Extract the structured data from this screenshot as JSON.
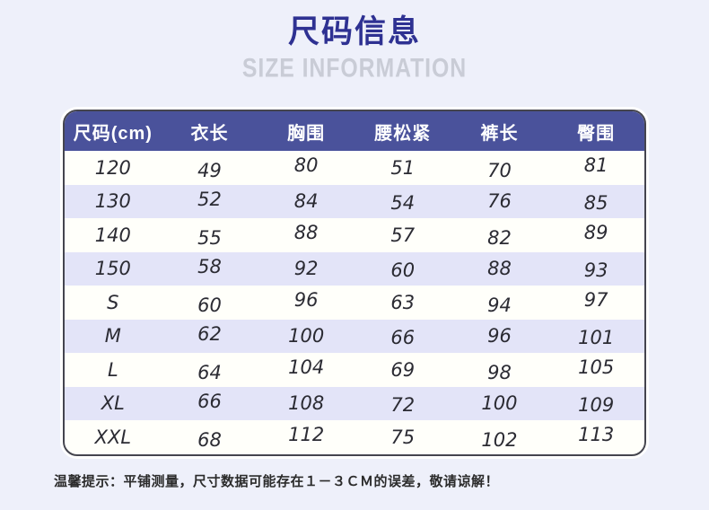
{
  "page": {
    "title": "尺码信息",
    "subtitle": "SIZE INFORMATION",
    "footer_note": "温馨提示：平铺测量，尺寸数据可能存在１－３ＣＭ的误差，敬请谅解！"
  },
  "table": {
    "columns": [
      "尺码(cm)",
      "衣长",
      "胸围",
      "腰松紧",
      "裤长",
      "臀围"
    ],
    "rows": [
      [
        "120",
        "49",
        "80",
        "51",
        "70",
        "81"
      ],
      [
        "130",
        "52",
        "84",
        "54",
        "76",
        "85"
      ],
      [
        "140",
        "55",
        "88",
        "57",
        "82",
        "89"
      ],
      [
        "150",
        "58",
        "92",
        "60",
        "88",
        "93"
      ],
      [
        "S",
        "60",
        "96",
        "63",
        "94",
        "97"
      ],
      [
        "M",
        "62",
        "100",
        "66",
        "96",
        "101"
      ],
      [
        "L",
        "64",
        "104",
        "69",
        "98",
        "105"
      ],
      [
        "XL",
        "66",
        "108",
        "72",
        "100",
        "109"
      ],
      [
        "XXL",
        "68",
        "112",
        "75",
        "102",
        "113"
      ]
    ]
  },
  "colors": {
    "page_bg": "#eef0fa",
    "header_bg": "#4a529b",
    "header_text": "#ffffff",
    "row_bg": "#fffffa",
    "row_alt_bg": "#e3e4f8",
    "title_color": "#2e3192",
    "subtitle_color": "#c9ccd6",
    "border_color": "#45454f",
    "cell_text": "#2b2b33",
    "footer_text": "#2b2b2b"
  }
}
